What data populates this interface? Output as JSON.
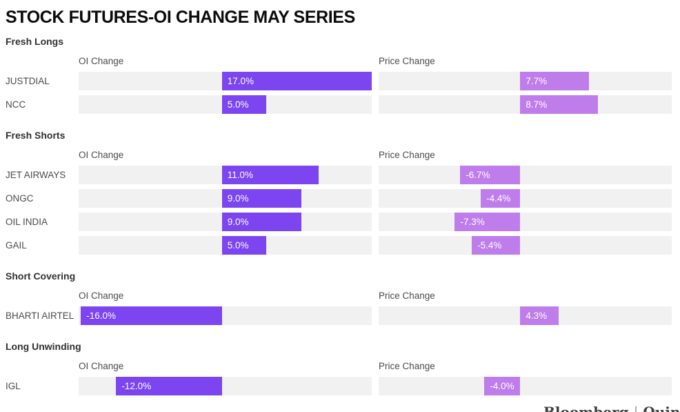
{
  "title": "STOCK FUTURES-OI CHANGE MAY SERIES",
  "columns": {
    "oi": "OI Change",
    "price": "Price Change"
  },
  "colors": {
    "oi_bar": "#7C45F0",
    "price_bar": "#BE7DEB",
    "track": "#F1F1F1",
    "bar_label": "#FFFFFF"
  },
  "watermark": {
    "left": "Bloomberg",
    "separator": "|",
    "right": "Quint"
  },
  "chart_data": {
    "type": "bar",
    "orientation": "horizontal",
    "unit": "%",
    "value_columns": [
      "OI Change",
      "Price Change"
    ],
    "axes": {
      "oi": {
        "min": -16.25,
        "max": 17.0
      },
      "price": {
        "min": -15.8,
        "max": 16.9
      }
    },
    "sections": [
      {
        "name": "Fresh Longs",
        "rows": [
          {
            "label": "JUSTDIAL",
            "oi": 17.0,
            "oi_label": "17.0%",
            "price": 7.7,
            "price_label": "7.7%"
          },
          {
            "label": "NCC",
            "oi": 5.0,
            "oi_label": "5.0%",
            "price": 8.7,
            "price_label": "8.7%"
          }
        ]
      },
      {
        "name": "Fresh Shorts",
        "rows": [
          {
            "label": "JET AIRWAYS",
            "oi": 11.0,
            "oi_label": "11.0%",
            "price": -6.7,
            "price_label": "-6.7%"
          },
          {
            "label": "ONGC",
            "oi": 9.0,
            "oi_label": "9.0%",
            "price": -4.4,
            "price_label": "-4.4%"
          },
          {
            "label": "OIL INDIA",
            "oi": 9.0,
            "oi_label": "9.0%",
            "price": -7.3,
            "price_label": "-7.3%"
          },
          {
            "label": "GAIL",
            "oi": 5.0,
            "oi_label": "5.0%",
            "price": -5.4,
            "price_label": "-5.4%"
          }
        ]
      },
      {
        "name": "Short Covering",
        "rows": [
          {
            "label": "BHARTI AIRTEL",
            "oi": -16.0,
            "oi_label": "-16.0%",
            "price": 4.3,
            "price_label": "4.3%"
          }
        ]
      },
      {
        "name": "Long Unwinding",
        "rows": [
          {
            "label": "IGL",
            "oi": -12.0,
            "oi_label": "-12.0%",
            "price": -4.0,
            "price_label": "-4.0%"
          }
        ]
      }
    ]
  }
}
